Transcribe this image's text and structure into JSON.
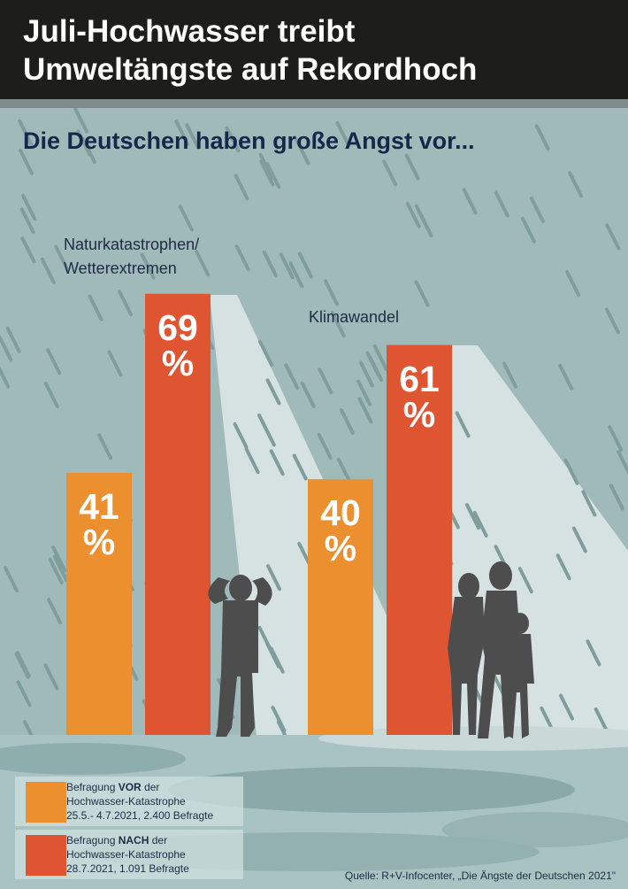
{
  "title_lines": [
    "Juli-Hochwasser treibt",
    "Umweltängste auf Rekordhoch"
  ],
  "chart_data": {
    "type": "bar",
    "title": "Die Deutschen haben große Angst vor...",
    "categories": [
      "Naturkatastrophen/\nWetterextremen",
      "Klimawandel"
    ],
    "category_lines": [
      [
        "Naturkatastrophen/",
        "Wetterextremen"
      ],
      [
        "Klimawandel"
      ]
    ],
    "series": [
      {
        "name": "Befragung VOR der Hochwasser-Katastrophe 25.5.- 4.7.2021, 2.400 Befragte",
        "values": [
          41,
          40
        ],
        "color": "#ec8f2f"
      },
      {
        "name": "Befragung NACH der Hochwasser-Katastrophe 28.7.2021, 1.091 Befragte",
        "values": [
          69,
          61
        ],
        "color": "#df5431"
      }
    ],
    "value_suffix": "%",
    "ylim": [
      0,
      100
    ],
    "grid": false,
    "legend_position": "bottom-left"
  },
  "legend": [
    {
      "pre": "Befragung ",
      "bold": "VOR",
      "post": " der",
      "line2": "Hochwasser-Katastrophe",
      "line3": "25.5.- 4.7.2021, 2.400 Befragte"
    },
    {
      "pre": "Befragung ",
      "bold": "NACH",
      "post": " der",
      "line2": "Hochwasser-Katastrophe",
      "line3": "28.7.2021, 1.091 Befragte"
    }
  ],
  "source": "Quelle: R+V-Infocenter, „Die Ängste der Deutschen 2021\""
}
